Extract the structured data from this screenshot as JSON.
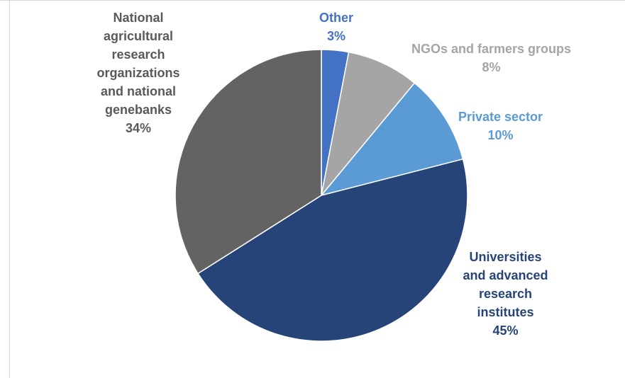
{
  "chart_data": {
    "type": "pie",
    "slices": [
      {
        "label_lines": [
          "Other"
        ],
        "value_text": "3%",
        "value": 3,
        "color": "#4472C4"
      },
      {
        "label_lines": [
          "NGOs and farmers groups"
        ],
        "value_text": "8%",
        "value": 8,
        "color": "#A5A5A5"
      },
      {
        "label_lines": [
          "Private sector"
        ],
        "value_text": "10%",
        "value": 10,
        "color": "#5B9BD5"
      },
      {
        "label_lines": [
          "Universities",
          "and advanced",
          "research",
          "institutes"
        ],
        "value_text": "45%",
        "value": 45,
        "color": "#264478"
      },
      {
        "label_lines": [
          "National",
          "agricultural",
          "research",
          "organizations",
          "and national",
          "genebanks"
        ],
        "value_text": "34%",
        "value": 34,
        "color": "#636363"
      }
    ],
    "start_angle": "top, clockwise"
  },
  "labels": {
    "other": {
      "line1": "Other",
      "value": "3%",
      "color": "#4472C4"
    },
    "ngo": {
      "line1": "NGOs and farmers groups",
      "value": "8%",
      "color": "#A5A5A5"
    },
    "private": {
      "line1": "Private sector",
      "value": "10%",
      "color": "#5B9BD5"
    },
    "universities": {
      "line1": "Universities",
      "line2": "and advanced",
      "line3": "research",
      "line4": "institutes",
      "value": "45%",
      "color": "#264478"
    },
    "national": {
      "line1": "National",
      "line2": "agricultural",
      "line3": "research",
      "line4": "organizations",
      "line5": "and national",
      "line6": "genebanks",
      "value": "34%",
      "color": "#595959"
    }
  }
}
